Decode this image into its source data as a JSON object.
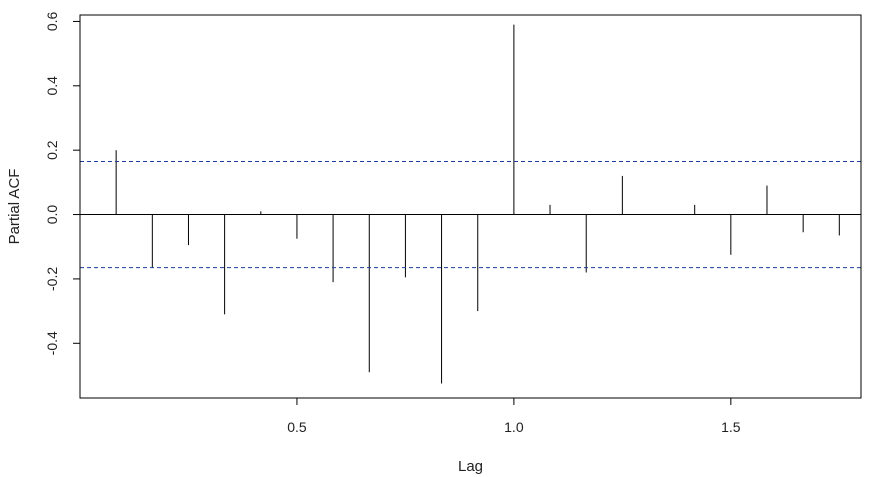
{
  "chart_data": {
    "type": "bar",
    "subtype": "partial-autocorrelation (stem plot)",
    "xlabel": "Lag",
    "ylabel": "Partial ACF",
    "xlim": [
      0.0,
      1.8
    ],
    "ylim": [
      -0.57,
      0.62
    ],
    "x_ticks": [
      0.5,
      1.0,
      1.5
    ],
    "x_tick_labels": [
      "0.5",
      "1.0",
      "1.5"
    ],
    "y_ticks": [
      -0.4,
      -0.2,
      0.0,
      0.2,
      0.4,
      0.6
    ],
    "y_tick_labels": [
      "-0.4",
      "-0.2",
      "0.0",
      "0.2",
      "0.4",
      "0.6"
    ],
    "confidence_bounds": [
      0.165,
      -0.165
    ],
    "zero_line": true,
    "grid": false,
    "legend": "none",
    "colors": {
      "spike": "#000000",
      "bound": "#1f3f9f",
      "axis": "#000000"
    },
    "lags": [
      0.0833,
      0.1667,
      0.25,
      0.3333,
      0.4167,
      0.5,
      0.5833,
      0.6667,
      0.75,
      0.8333,
      0.9167,
      1.0,
      1.0833,
      1.1667,
      1.25,
      1.3333,
      1.4167,
      1.5,
      1.5833,
      1.6667,
      1.75
    ],
    "values": [
      0.2,
      -0.165,
      -0.095,
      -0.31,
      0.01,
      -0.075,
      -0.21,
      -0.49,
      -0.195,
      -0.525,
      -0.3,
      0.59,
      0.03,
      -0.18,
      0.12,
      0.0,
      0.03,
      -0.125,
      0.09,
      -0.055,
      -0.065
    ]
  }
}
